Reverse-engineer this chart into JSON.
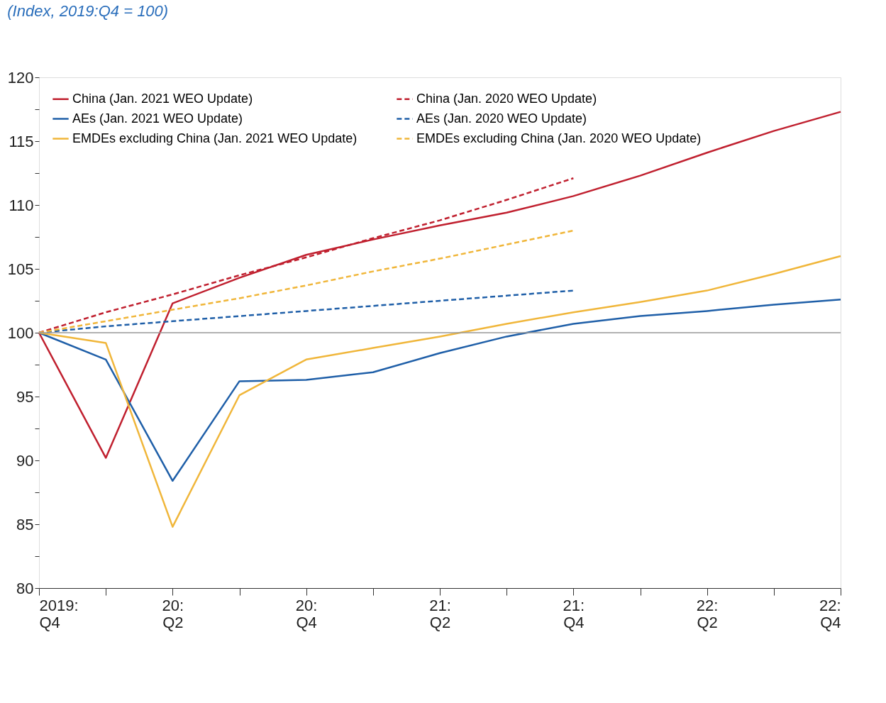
{
  "chart_data": {
    "type": "line",
    "title": "(Index, 2019:Q4 = 100)",
    "categories": [
      "2019:\nQ4",
      null,
      "20:\nQ2",
      null,
      "20:\nQ4",
      null,
      "21:\nQ2",
      null,
      "21:\nQ4",
      null,
      "22:\nQ2",
      null,
      "22:\nQ4"
    ],
    "series": [
      {
        "name": "China (Jan. 2021 WEO Update)",
        "color": "#c0202f",
        "line_style": "solid",
        "values": [
          100,
          90.2,
          102.3,
          104.3,
          106.1,
          107.3,
          108.4,
          109.4,
          110.7,
          112.3,
          114.1,
          115.8,
          117.3
        ]
      },
      {
        "name": "AEs (Jan. 2021 WEO Update)",
        "color": "#1f5fa8",
        "line_style": "solid",
        "values": [
          100,
          97.9,
          88.4,
          96.2,
          96.3,
          96.9,
          98.4,
          99.7,
          100.7,
          101.3,
          101.7,
          102.2,
          102.6
        ]
      },
      {
        "name": "EMDEs excluding China (Jan. 2021 WEO Update)",
        "color": "#f0b63a",
        "line_style": "solid",
        "values": [
          100,
          99.2,
          84.8,
          95.1,
          97.9,
          98.8,
          99.7,
          100.7,
          101.6,
          102.4,
          103.3,
          104.6,
          106.0
        ]
      },
      {
        "name": "China (Jan. 2020 WEO Update)",
        "color": "#c0202f",
        "line_style": "dashed",
        "values": [
          100,
          101.6,
          103.0,
          104.5,
          105.9,
          107.4,
          108.8,
          110.4,
          112.1,
          null,
          null,
          null,
          null
        ]
      },
      {
        "name": "AEs (Jan. 2020 WEO Update)",
        "color": "#1f5fa8",
        "line_style": "dashed",
        "values": [
          100,
          100.5,
          100.9,
          101.3,
          101.7,
          102.1,
          102.5,
          102.9,
          103.3,
          null,
          null,
          null,
          null
        ]
      },
      {
        "name": "EMDEs excluding China (Jan. 2020 WEO Update)",
        "color": "#f0b63a",
        "line_style": "dashed",
        "values": [
          100,
          100.9,
          101.8,
          102.7,
          103.7,
          104.8,
          105.8,
          106.9,
          108.0,
          null,
          null,
          null,
          null
        ]
      }
    ],
    "ylim": [
      80,
      120
    ],
    "yticks": [
      80,
      {
        "value": 82.5,
        "label": null
      },
      85,
      {
        "value": 87.5,
        "label": null
      },
      90,
      {
        "value": 92.5,
        "label": null
      },
      95,
      {
        "value": 97.5,
        "label": null
      },
      100,
      {
        "value": 102.5,
        "label": null
      },
      105,
      {
        "value": 107.5,
        "label": null
      },
      110,
      {
        "value": 112.5,
        "label": null
      },
      115,
      {
        "value": 117.5,
        "label": null
      },
      120
    ],
    "ref_lines": [
      {
        "axis": "y",
        "value": 100,
        "color": "#999999"
      }
    ],
    "grid": false,
    "legend": "top left",
    "marker": "none"
  }
}
